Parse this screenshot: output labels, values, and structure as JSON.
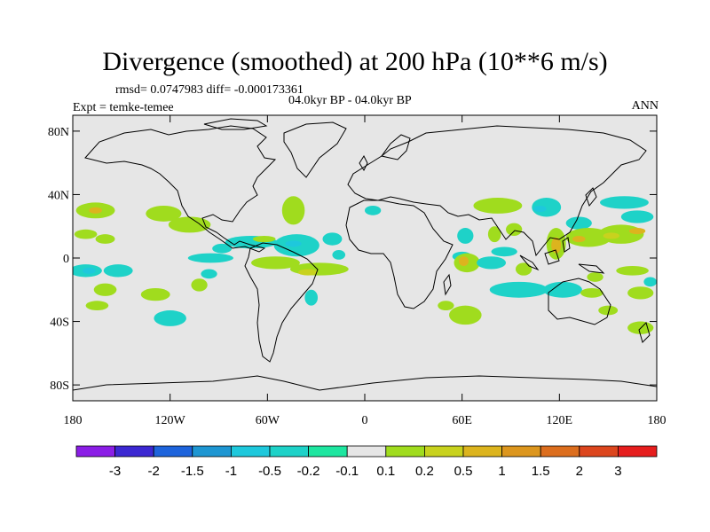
{
  "title": "Divergence (smoothed) at 200 hPa (10**6 m/s)",
  "stats": "rmsd= 0.0747983 diff= -0.000173361",
  "period": "04.0kyr BP - 04.0kyr BP",
  "expt": "Expt = temke-temee",
  "season": "ANN",
  "colors": {
    "land_fill": "#e6e6e6",
    "coast": "#000000",
    "bins": [
      "#8b1ee6",
      "#3c28d2",
      "#1e64dc",
      "#1e96d2",
      "#1ec8dc",
      "#1ed2c8",
      "#1ee6a0",
      "#e6e6e6",
      "#a0dc1e",
      "#c8d21e",
      "#dcb41e",
      "#dc961e",
      "#dc6e1e",
      "#dc461e",
      "#e61e1e"
    ]
  },
  "colorbar": {
    "labels": [
      "-3",
      "-2",
      "-1.5",
      "-1",
      "-0.5",
      "-0.2",
      "-0.1",
      "0.1",
      "0.2",
      "0.5",
      "1",
      "1.5",
      "2",
      "3"
    ]
  },
  "axes": {
    "y_ticks": [
      {
        "value": 80,
        "label": "80N"
      },
      {
        "value": 40,
        "label": "40N"
      },
      {
        "value": 0,
        "label": "0"
      },
      {
        "value": -40,
        "label": "40S"
      },
      {
        "value": -80,
        "label": "80S"
      }
    ],
    "x_ticks": [
      {
        "value": -180,
        "label": "180"
      },
      {
        "value": -120,
        "label": "120W"
      },
      {
        "value": -60,
        "label": "60W"
      },
      {
        "value": 0,
        "label": "0"
      },
      {
        "value": 60,
        "label": "60E"
      },
      {
        "value": 120,
        "label": "120E"
      },
      {
        "value": 180,
        "label": "180"
      }
    ]
  },
  "map_data": {
    "type": "filled-contour",
    "projection": "cylindrical-equidistant",
    "lon_range": [
      -180,
      180
    ],
    "lat_range": [
      -90,
      90
    ],
    "blobs": [
      {
        "lon": -166,
        "lat": 30,
        "rlon": 12,
        "rlat": 5,
        "bin": 8
      },
      {
        "lon": -166,
        "lat": 30,
        "rlon": 4,
        "rlat": 2,
        "bin": 10
      },
      {
        "lon": -124,
        "lat": 28,
        "rlon": 11,
        "rlat": 5,
        "bin": 8
      },
      {
        "lon": -108,
        "lat": 21,
        "rlon": 13,
        "rlat": 5,
        "bin": 8
      },
      {
        "lon": -172,
        "lat": 15,
        "rlon": 7,
        "rlat": 3,
        "bin": 8
      },
      {
        "lon": -160,
        "lat": 12,
        "rlon": 6,
        "rlat": 3,
        "bin": 8
      },
      {
        "lon": -44,
        "lat": 30,
        "rlon": 7,
        "rlat": 9,
        "bin": 8
      },
      {
        "lon": -70,
        "lat": 10,
        "rlon": 16,
        "rlat": 4,
        "bin": 5
      },
      {
        "lon": -62,
        "lat": 12,
        "rlon": 7,
        "rlat": 2,
        "bin": 8
      },
      {
        "lon": -88,
        "lat": 6,
        "rlon": 6,
        "rlat": 3,
        "bin": 5
      },
      {
        "lon": -42,
        "lat": 8,
        "rlon": 14,
        "rlat": 7,
        "bin": 5
      },
      {
        "lon": -44,
        "lat": 9,
        "rlon": 5,
        "rlat": 2,
        "bin": 4
      },
      {
        "lon": -20,
        "lat": 12,
        "rlon": 6,
        "rlat": 4,
        "bin": 5
      },
      {
        "lon": -95,
        "lat": 0,
        "rlon": 14,
        "rlat": 3,
        "bin": 5
      },
      {
        "lon": -55,
        "lat": -3,
        "rlon": 15,
        "rlat": 4,
        "bin": 8
      },
      {
        "lon": -28,
        "lat": -7,
        "rlon": 18,
        "rlat": 4,
        "bin": 8
      },
      {
        "lon": -35,
        "lat": -9,
        "rlon": 6,
        "rlat": 2,
        "bin": 9
      },
      {
        "lon": -96,
        "lat": -10,
        "rlon": 5,
        "rlat": 3,
        "bin": 5
      },
      {
        "lon": -172,
        "lat": -8,
        "rlon": 10,
        "rlat": 4,
        "bin": 5
      },
      {
        "lon": -170,
        "lat": -8,
        "rlon": 4,
        "rlat": 2,
        "bin": 4
      },
      {
        "lon": -152,
        "lat": -8,
        "rlon": 9,
        "rlat": 4,
        "bin": 5
      },
      {
        "lon": -160,
        "lat": -20,
        "rlon": 7,
        "rlat": 4,
        "bin": 8
      },
      {
        "lon": -165,
        "lat": -30,
        "rlon": 7,
        "rlat": 3,
        "bin": 8
      },
      {
        "lon": -129,
        "lat": -23,
        "rlon": 9,
        "rlat": 4,
        "bin": 8
      },
      {
        "lon": -102,
        "lat": -17,
        "rlon": 5,
        "rlat": 4,
        "bin": 8
      },
      {
        "lon": -120,
        "lat": -38,
        "rlon": 10,
        "rlat": 5,
        "bin": 5
      },
      {
        "lon": -33,
        "lat": -25,
        "rlon": 4,
        "rlat": 5,
        "bin": 5
      },
      {
        "lon": -16,
        "lat": 2,
        "rlon": 4,
        "rlat": 3,
        "bin": 5
      },
      {
        "lon": 5,
        "lat": 30,
        "rlon": 5,
        "rlat": 3,
        "bin": 5
      },
      {
        "lon": 82,
        "lat": 33,
        "rlon": 15,
        "rlat": 5,
        "bin": 8
      },
      {
        "lon": 112,
        "lat": 32,
        "rlon": 9,
        "rlat": 6,
        "bin": 5
      },
      {
        "lon": 108,
        "lat": 31,
        "rlon": 4,
        "rlat": 2,
        "bin": 4
      },
      {
        "lon": 132,
        "lat": 22,
        "rlon": 8,
        "rlat": 4,
        "bin": 5
      },
      {
        "lon": 160,
        "lat": 35,
        "rlon": 15,
        "rlat": 4,
        "bin": 5
      },
      {
        "lon": 168,
        "lat": 26,
        "rlon": 10,
        "rlat": 4,
        "bin": 5
      },
      {
        "lon": 62,
        "lat": 14,
        "rlon": 5,
        "rlat": 5,
        "bin": 5
      },
      {
        "lon": 80,
        "lat": 15,
        "rlon": 4,
        "rlat": 5,
        "bin": 8
      },
      {
        "lon": 92,
        "lat": 18,
        "rlon": 5,
        "rlat": 4,
        "bin": 8
      },
      {
        "lon": 86,
        "lat": 4,
        "rlon": 8,
        "rlat": 3,
        "bin": 5
      },
      {
        "lon": 118,
        "lat": 9,
        "rlon": 6,
        "rlat": 10,
        "bin": 8
      },
      {
        "lon": 118,
        "lat": 8,
        "rlon": 3,
        "rlat": 5,
        "bin": 10
      },
      {
        "lon": 138,
        "lat": 13,
        "rlon": 14,
        "rlat": 6,
        "bin": 8
      },
      {
        "lon": 158,
        "lat": 15,
        "rlon": 14,
        "rlat": 6,
        "bin": 8
      },
      {
        "lon": 132,
        "lat": 12,
        "rlon": 4,
        "rlat": 2,
        "bin": 10
      },
      {
        "lon": 168,
        "lat": 17,
        "rlon": 5,
        "rlat": 2,
        "bin": 10
      },
      {
        "lon": 152,
        "lat": 14,
        "rlon": 5,
        "rlat": 2,
        "bin": 9
      },
      {
        "lon": 60,
        "lat": 1,
        "rlon": 6,
        "rlat": 3,
        "bin": 5
      },
      {
        "lon": 63,
        "lat": -3,
        "rlon": 8,
        "rlat": 6,
        "bin": 8
      },
      {
        "lon": 61,
        "lat": -2,
        "rlon": 3,
        "rlat": 3,
        "bin": 10
      },
      {
        "lon": 78,
        "lat": -3,
        "rlon": 9,
        "rlat": 4,
        "bin": 5
      },
      {
        "lon": 98,
        "lat": -7,
        "rlon": 5,
        "rlat": 4,
        "bin": 8
      },
      {
        "lon": 142,
        "lat": -12,
        "rlon": 5,
        "rlat": 3,
        "bin": 8
      },
      {
        "lon": 165,
        "lat": -8,
        "rlon": 10,
        "rlat": 3,
        "bin": 8
      },
      {
        "lon": 95,
        "lat": -20,
        "rlon": 18,
        "rlat": 5,
        "bin": 5
      },
      {
        "lon": 122,
        "lat": -20,
        "rlon": 12,
        "rlat": 5,
        "bin": 5
      },
      {
        "lon": 140,
        "lat": -22,
        "rlon": 7,
        "rlat": 3,
        "bin": 8
      },
      {
        "lon": 170,
        "lat": -22,
        "rlon": 8,
        "rlat": 4,
        "bin": 8
      },
      {
        "lon": 176,
        "lat": -15,
        "rlon": 4,
        "rlat": 3,
        "bin": 5
      },
      {
        "lon": 62,
        "lat": -36,
        "rlon": 10,
        "rlat": 6,
        "bin": 8
      },
      {
        "lon": 50,
        "lat": -30,
        "rlon": 5,
        "rlat": 3,
        "bin": 8
      },
      {
        "lon": 170,
        "lat": -44,
        "rlon": 8,
        "rlat": 4,
        "bin": 8
      },
      {
        "lon": 150,
        "lat": -33,
        "rlon": 6,
        "rlat": 3,
        "bin": 8
      }
    ]
  }
}
